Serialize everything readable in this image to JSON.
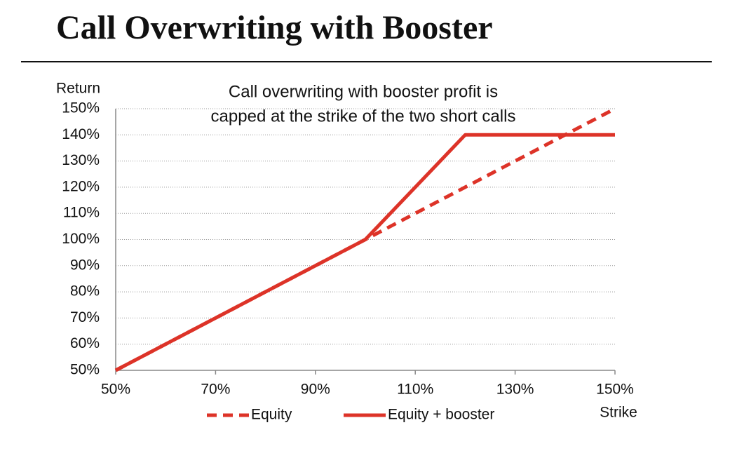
{
  "chart_data": {
    "type": "line",
    "title": "Call Overwriting with Booster",
    "annotation": [
      "Call overwriting with booster profit is",
      "capped at the strike of the two short calls"
    ],
    "y_label": "Return",
    "x_label": "Strike",
    "x": [
      50,
      100,
      120,
      150
    ],
    "series": [
      {
        "name": "Equity",
        "color": "#dd3328",
        "dashed": true,
        "values": [
          50,
          100,
          120,
          150
        ]
      },
      {
        "name": "Equity + booster",
        "color": "#dd3328",
        "dashed": false,
        "values": [
          50,
          100,
          140,
          140
        ]
      }
    ],
    "xlim": [
      50,
      150
    ],
    "ylim": [
      50,
      150
    ],
    "xticks": [
      {
        "value": 50,
        "label": "50%"
      },
      {
        "value": 70,
        "label": "70%"
      },
      {
        "value": 90,
        "label": "90%"
      },
      {
        "value": 110,
        "label": "110%"
      },
      {
        "value": 130,
        "label": "130%"
      },
      {
        "value": 150,
        "label": "150%"
      }
    ],
    "yticks": [
      {
        "value": 50,
        "label": "50%"
      },
      {
        "value": 60,
        "label": "60%"
      },
      {
        "value": 70,
        "label": "70%"
      },
      {
        "value": 80,
        "label": "80%"
      },
      {
        "value": 90,
        "label": "90%"
      },
      {
        "value": 100,
        "label": "100%"
      },
      {
        "value": 110,
        "label": "110%"
      },
      {
        "value": 120,
        "label": "120%"
      },
      {
        "value": 130,
        "label": "130%"
      },
      {
        "value": 140,
        "label": "140%"
      },
      {
        "value": 150,
        "label": "150%"
      }
    ],
    "grid": true
  }
}
